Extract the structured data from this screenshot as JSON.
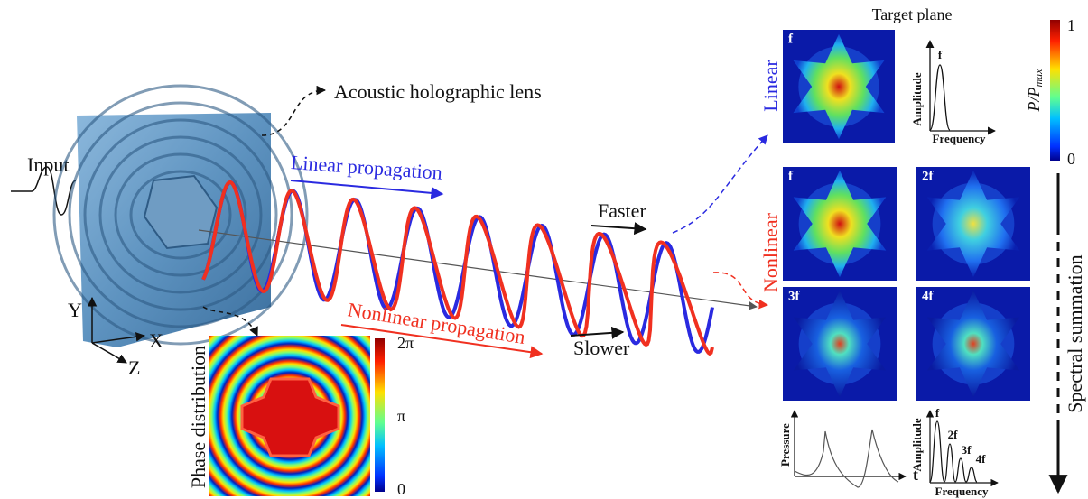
{
  "labels": {
    "input": "Input",
    "lens": "Acoustic holographic lens",
    "linear_propagation": "Linear propagation",
    "nonlinear_propagation": "Nonlinear propagation",
    "faster": "Faster",
    "slower": "Slower"
  },
  "axes": {
    "x": "X",
    "y": "Y",
    "z": "Z"
  },
  "phase_map": {
    "title": "Phase distribution",
    "colorbar_ticks": [
      "2π",
      "π",
      "0"
    ]
  },
  "target_plane": {
    "title": "Target plane",
    "linear_label": "Linear",
    "nonlinear_label": "Nonlinear",
    "linear_panel": "f",
    "nonlinear_panels": [
      "f",
      "2f",
      "3f",
      "4f"
    ],
    "colorbar": {
      "label": "P/P",
      "label_subscript": "max",
      "ticks": [
        "1",
        "0"
      ]
    },
    "linear_spectrum": {
      "y_label": "Amplitude",
      "x_label": "Frequency",
      "peaks": [
        "f"
      ]
    },
    "pressure_plot": {
      "y_label": "Pressure",
      "x_label": "t"
    },
    "nonlinear_spectrum": {
      "y_label": "Amplitude",
      "x_label": "Frequency",
      "peaks": [
        "f",
        "2f",
        "3f",
        "4f"
      ]
    },
    "summation": "Spectral summation"
  }
}
